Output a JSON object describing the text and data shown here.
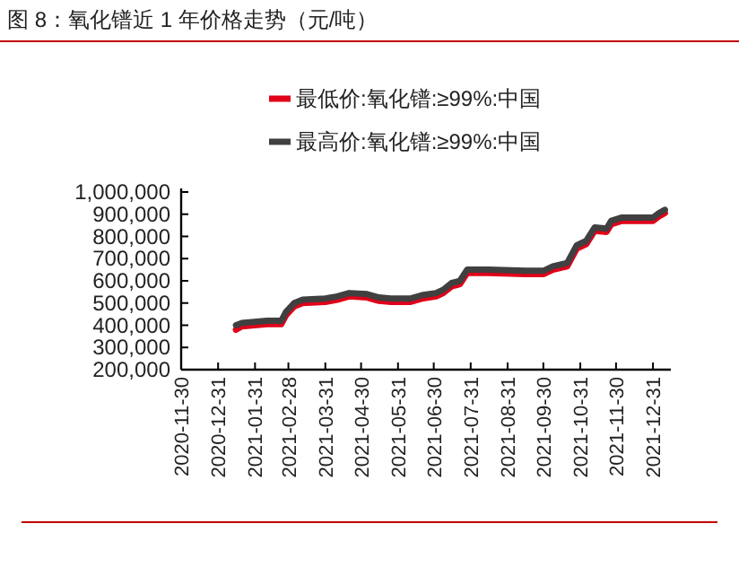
{
  "chart_data": {
    "type": "line",
    "title": "图 8：氧化镨近 1 年价格走势（元/吨）",
    "x": [
      "2021-01-15",
      "2021-01-20",
      "2021-02-10",
      "2021-02-22",
      "2021-02-26",
      "2021-03-05",
      "2021-03-12",
      "2021-03-31",
      "2021-04-10",
      "2021-04-20",
      "2021-05-05",
      "2021-05-15",
      "2021-05-25",
      "2021-06-10",
      "2021-06-20",
      "2021-07-02",
      "2021-07-08",
      "2021-07-15",
      "2021-07-22",
      "2021-07-28",
      "2021-08-15",
      "2021-09-15",
      "2021-09-30",
      "2021-10-08",
      "2021-10-20",
      "2021-10-28",
      "2021-11-05",
      "2021-11-12",
      "2021-11-22",
      "2021-11-26",
      "2021-12-05",
      "2021-12-31",
      "2022-01-05",
      "2022-01-10"
    ],
    "series": [
      {
        "name": "最低价:氧化镨:≥99%:中国",
        "color": "#e0001a",
        "values": [
          380000,
          395000,
          405000,
          405000,
          445000,
          485000,
          500000,
          505000,
          515000,
          530000,
          525000,
          510000,
          505000,
          505000,
          520000,
          530000,
          545000,
          575000,
          585000,
          635000,
          635000,
          630000,
          630000,
          650000,
          665000,
          745000,
          765000,
          825000,
          820000,
          855000,
          870000,
          870000,
          890000,
          905000
        ]
      },
      {
        "name": "最高价:氧化镨:≥99%:中国",
        "color": "#404040",
        "values": [
          400000,
          410000,
          420000,
          420000,
          460000,
          500000,
          515000,
          520000,
          530000,
          545000,
          540000,
          525000,
          520000,
          520000,
          535000,
          545000,
          560000,
          590000,
          600000,
          650000,
          650000,
          645000,
          645000,
          665000,
          680000,
          760000,
          780000,
          840000,
          835000,
          870000,
          885000,
          885000,
          905000,
          920000
        ]
      }
    ],
    "xlim": [
      "2020-11-30",
      "2022-01-15"
    ],
    "xticks": [
      {
        "value": "2020-11-30",
        "label": "2020-11-30"
      },
      {
        "value": "2020-12-31",
        "label": "2020-12-31"
      },
      {
        "value": "2021-01-31",
        "label": "2021-01-31"
      },
      {
        "value": "2021-02-28",
        "label": "2021-02-28"
      },
      {
        "value": "2021-03-31",
        "label": "2021-03-31"
      },
      {
        "value": "2021-04-30",
        "label": "2021-04-30"
      },
      {
        "value": "2021-05-31",
        "label": "2021-05-31"
      },
      {
        "value": "2021-06-30",
        "label": "2021-06-30"
      },
      {
        "value": "2021-07-31",
        "label": "2021-07-31"
      },
      {
        "value": "2021-08-31",
        "label": "2021-08-31"
      },
      {
        "value": "2021-09-30",
        "label": "2021-09-30"
      },
      {
        "value": "2021-10-31",
        "label": "2021-10-31"
      },
      {
        "value": "2021-11-30",
        "label": "2021-11-30"
      },
      {
        "value": "2021-12-31",
        "label": "2021-12-31"
      }
    ],
    "ylim": [
      200000,
      1000000
    ],
    "yticks": [
      {
        "value": 200000,
        "label": "200,000"
      },
      {
        "value": 300000,
        "label": "300,000"
      },
      {
        "value": 400000,
        "label": "400,000"
      },
      {
        "value": 500000,
        "label": "500,000"
      },
      {
        "value": 600000,
        "label": "600,000"
      },
      {
        "value": 700000,
        "label": "700,000"
      },
      {
        "value": 800000,
        "label": "800,000"
      },
      {
        "value": 900000,
        "label": "900,000"
      },
      {
        "value": 1000000,
        "label": "1,000,000"
      }
    ],
    "legend": "top",
    "grid": false,
    "marker": "none",
    "line_style": "solid"
  }
}
